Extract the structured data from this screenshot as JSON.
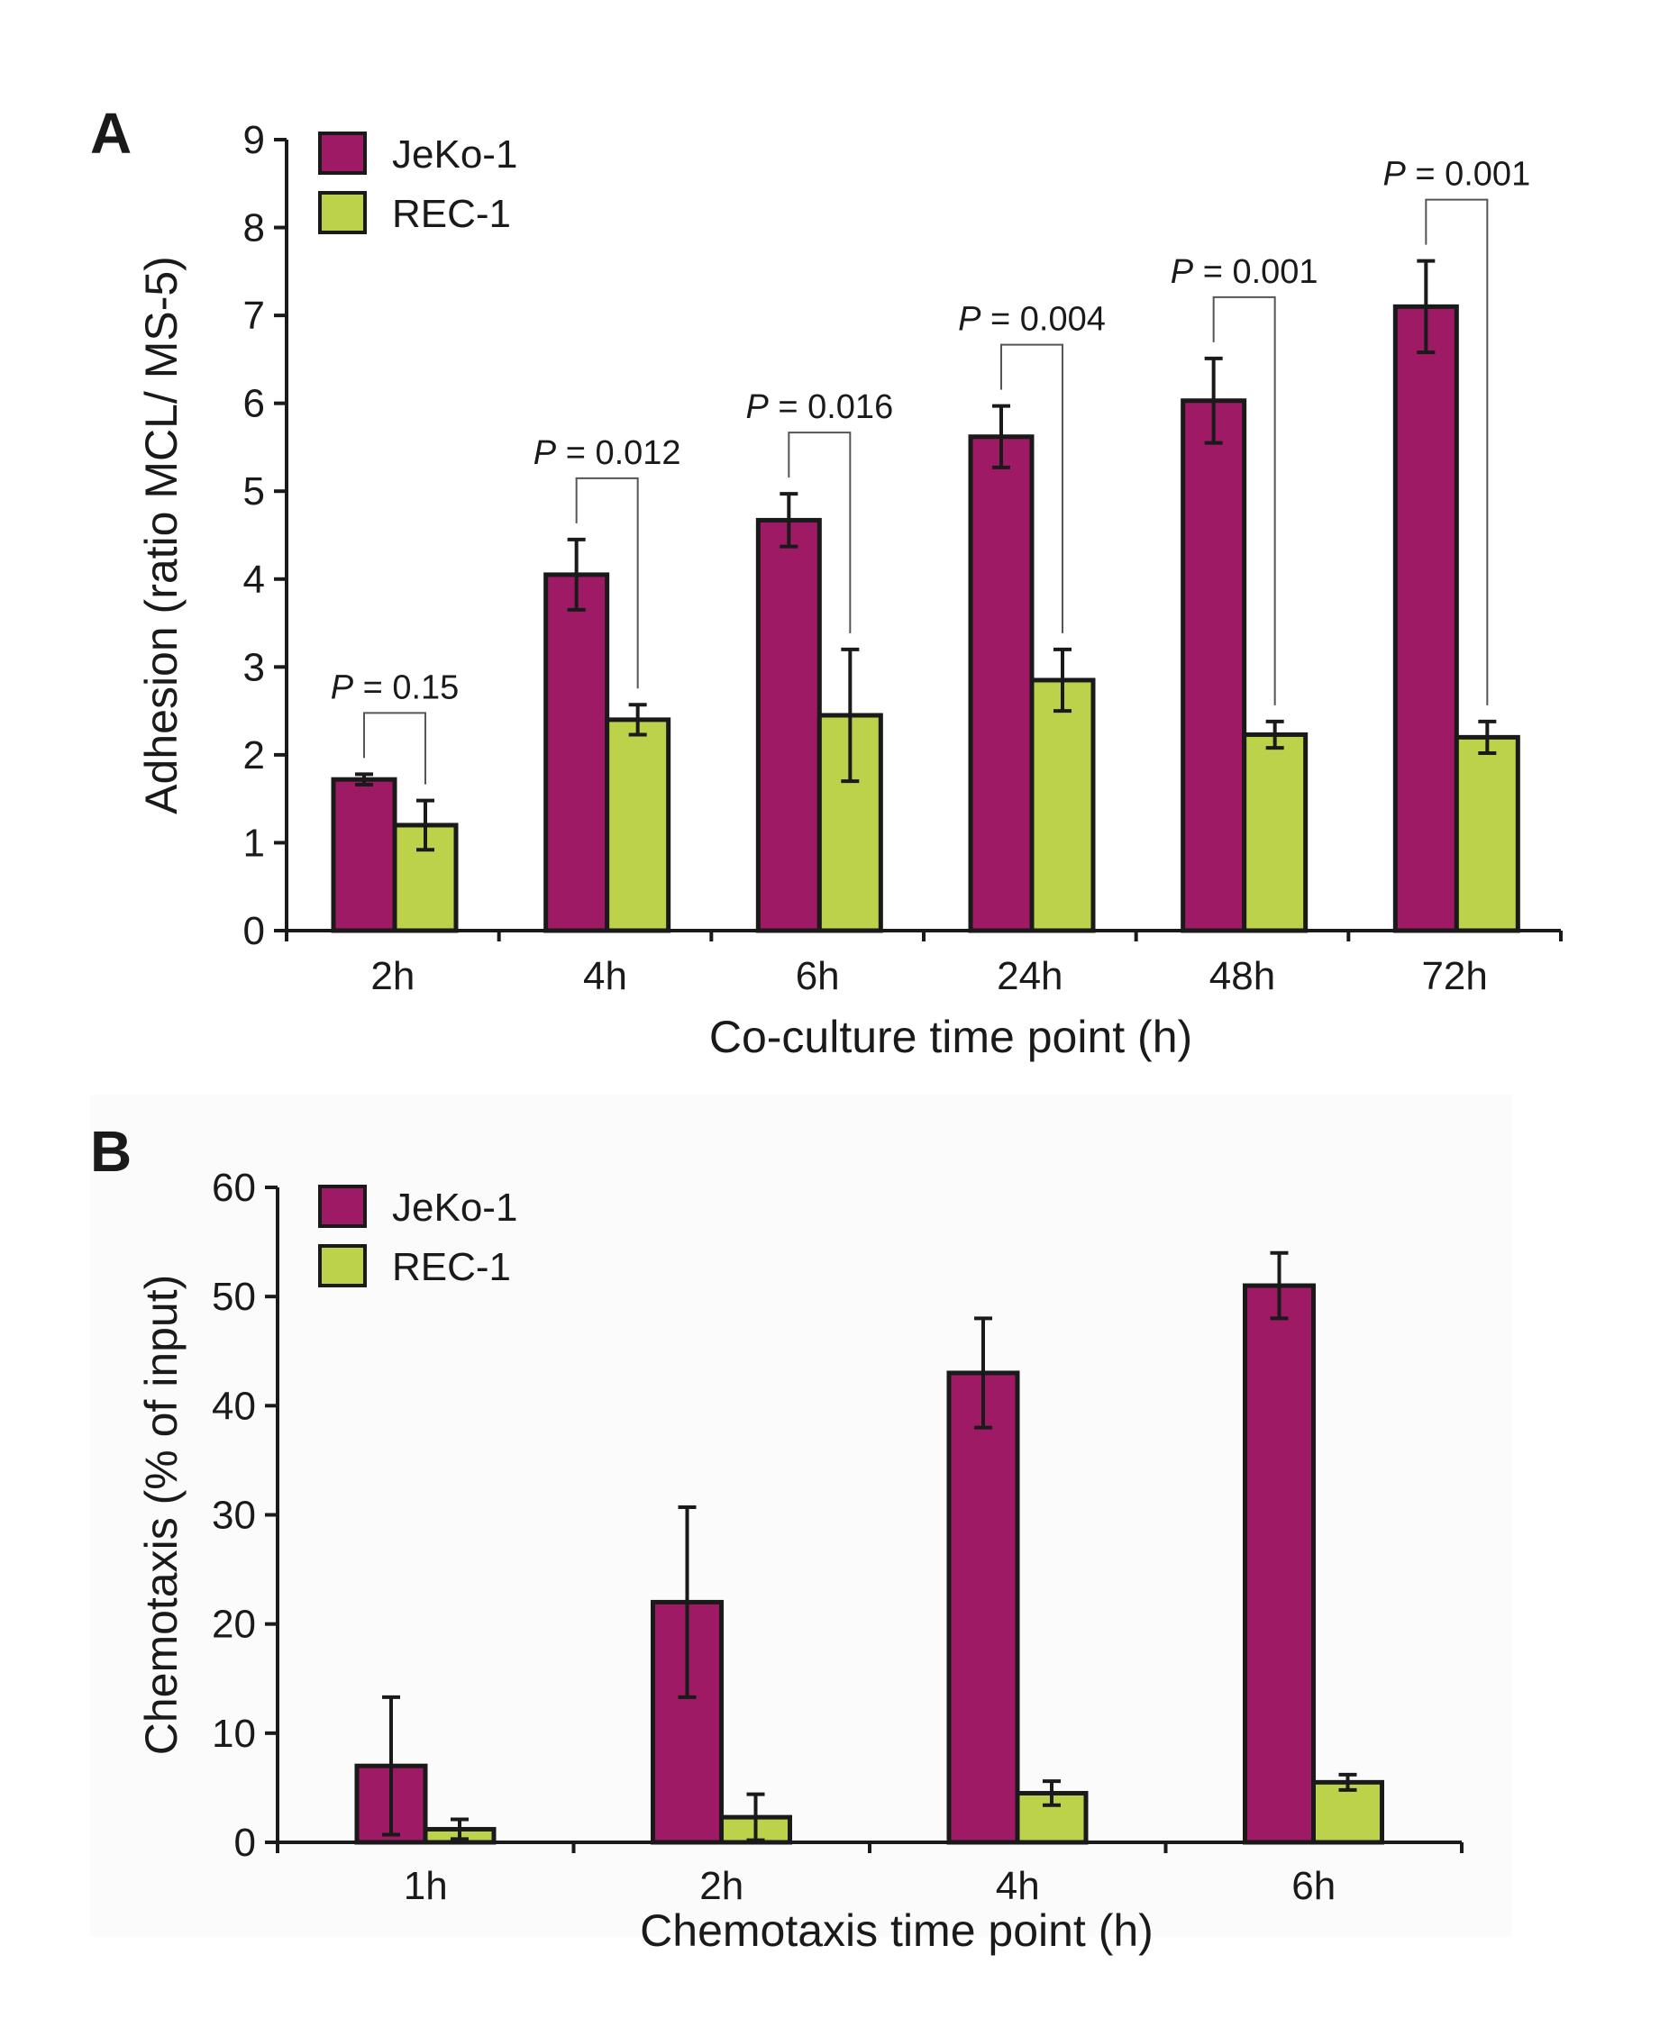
{
  "colors": {
    "jeko": "#9e1a64",
    "rec": "#bcd24a",
    "ink": "#1a1a1a",
    "panel_bg": "#ffffff",
    "panel_b_bg": "#fbfbfb"
  },
  "legend": [
    "JeKo-1",
    "REC-1"
  ],
  "chart_data": [
    {
      "panel": "A",
      "type": "bar",
      "categories": [
        "2h",
        "4h",
        "6h",
        "24h",
        "48h",
        "72h"
      ],
      "xlabel": "Co-culture time point (h)",
      "ylabel": "Adhesion (ratio MCL/ MS-5)",
      "ylim": [
        0,
        9
      ],
      "yticks": [
        0,
        1,
        2,
        3,
        4,
        5,
        6,
        7,
        8,
        9
      ],
      "legend_position": "top-left",
      "grid": false,
      "series": [
        {
          "name": "JeKo-1",
          "values": [
            1.72,
            4.05,
            4.67,
            5.62,
            6.03,
            7.1
          ],
          "errors": [
            0.06,
            0.4,
            0.3,
            0.35,
            0.48,
            0.52
          ]
        },
        {
          "name": "REC-1",
          "values": [
            1.2,
            2.4,
            2.45,
            2.85,
            2.23,
            2.2
          ],
          "errors": [
            0.28,
            0.17,
            0.75,
            0.35,
            0.15,
            0.18
          ]
        }
      ],
      "annotations": [
        {
          "category": "2h",
          "label": "P",
          "value": "= 0.15"
        },
        {
          "category": "4h",
          "label": "P",
          "value": "= 0.012"
        },
        {
          "category": "6h",
          "label": "P",
          "value": "= 0.016"
        },
        {
          "category": "24h",
          "label": "P",
          "value": "= 0.004"
        },
        {
          "category": "48h",
          "label": "P",
          "value": "= 0.001"
        },
        {
          "category": "72h",
          "label": "P",
          "value": "= 0.001"
        }
      ]
    },
    {
      "panel": "B",
      "type": "bar",
      "categories": [
        "1h",
        "2h",
        "4h",
        "6h"
      ],
      "xlabel": "Chemotaxis time point (h)",
      "ylabel": "Chemotaxis  (% of input)",
      "ylim": [
        0,
        60
      ],
      "yticks": [
        0,
        10,
        20,
        30,
        40,
        50,
        60
      ],
      "legend_position": "top-left",
      "grid": false,
      "series": [
        {
          "name": "JeKo-1",
          "values": [
            7,
            22,
            43,
            51
          ],
          "errors": [
            6.3,
            8.7,
            5,
            3
          ]
        },
        {
          "name": "REC-1",
          "values": [
            1.2,
            2.3,
            4.5,
            5.5
          ],
          "errors": [
            0.9,
            2.1,
            1.1,
            0.7
          ]
        }
      ]
    }
  ]
}
